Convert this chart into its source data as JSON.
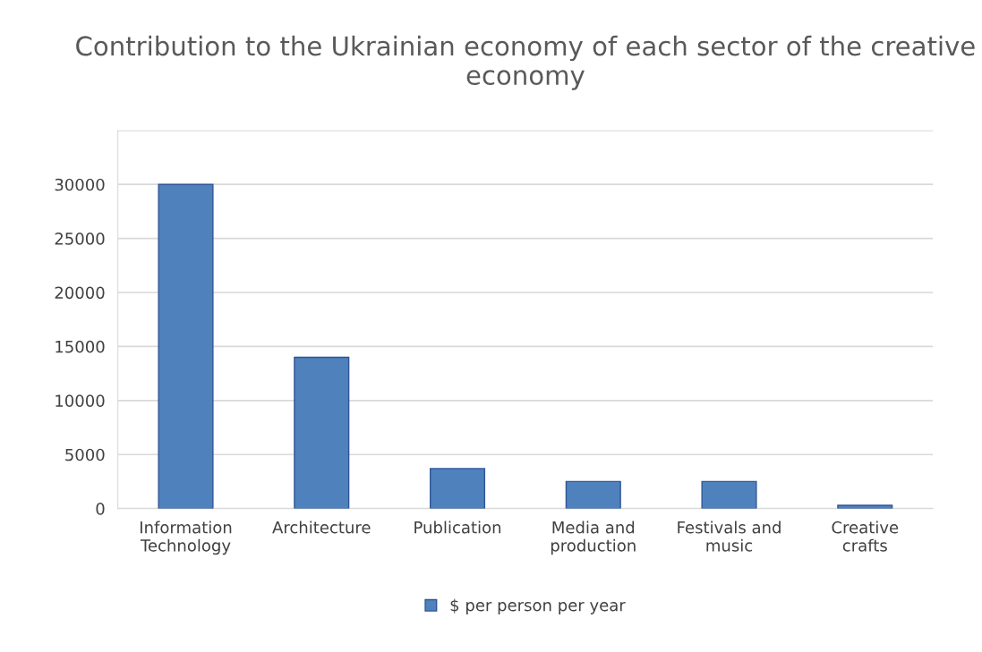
{
  "chart_data": {
    "type": "bar",
    "title": "Contribution to the Ukrainian economy of each sector of the creative economy",
    "categories": [
      "Information\nTechnology",
      "Architecture",
      "Publication",
      "Media and\nproduction",
      "Festivals and\nmusic",
      "Creative\ncrafts"
    ],
    "series": [
      {
        "name": "$ per person per year",
        "color": "#4f81bd",
        "values": [
          30000,
          14000,
          3700,
          2500,
          2500,
          300
        ]
      }
    ],
    "ylim": [
      0,
      35000
    ],
    "yticks": [
      0,
      5000,
      10000,
      15000,
      20000,
      25000,
      30000,
      {
        "value": 35000,
        "label": null
      }
    ],
    "grid": "y",
    "legend": "bottom"
  }
}
